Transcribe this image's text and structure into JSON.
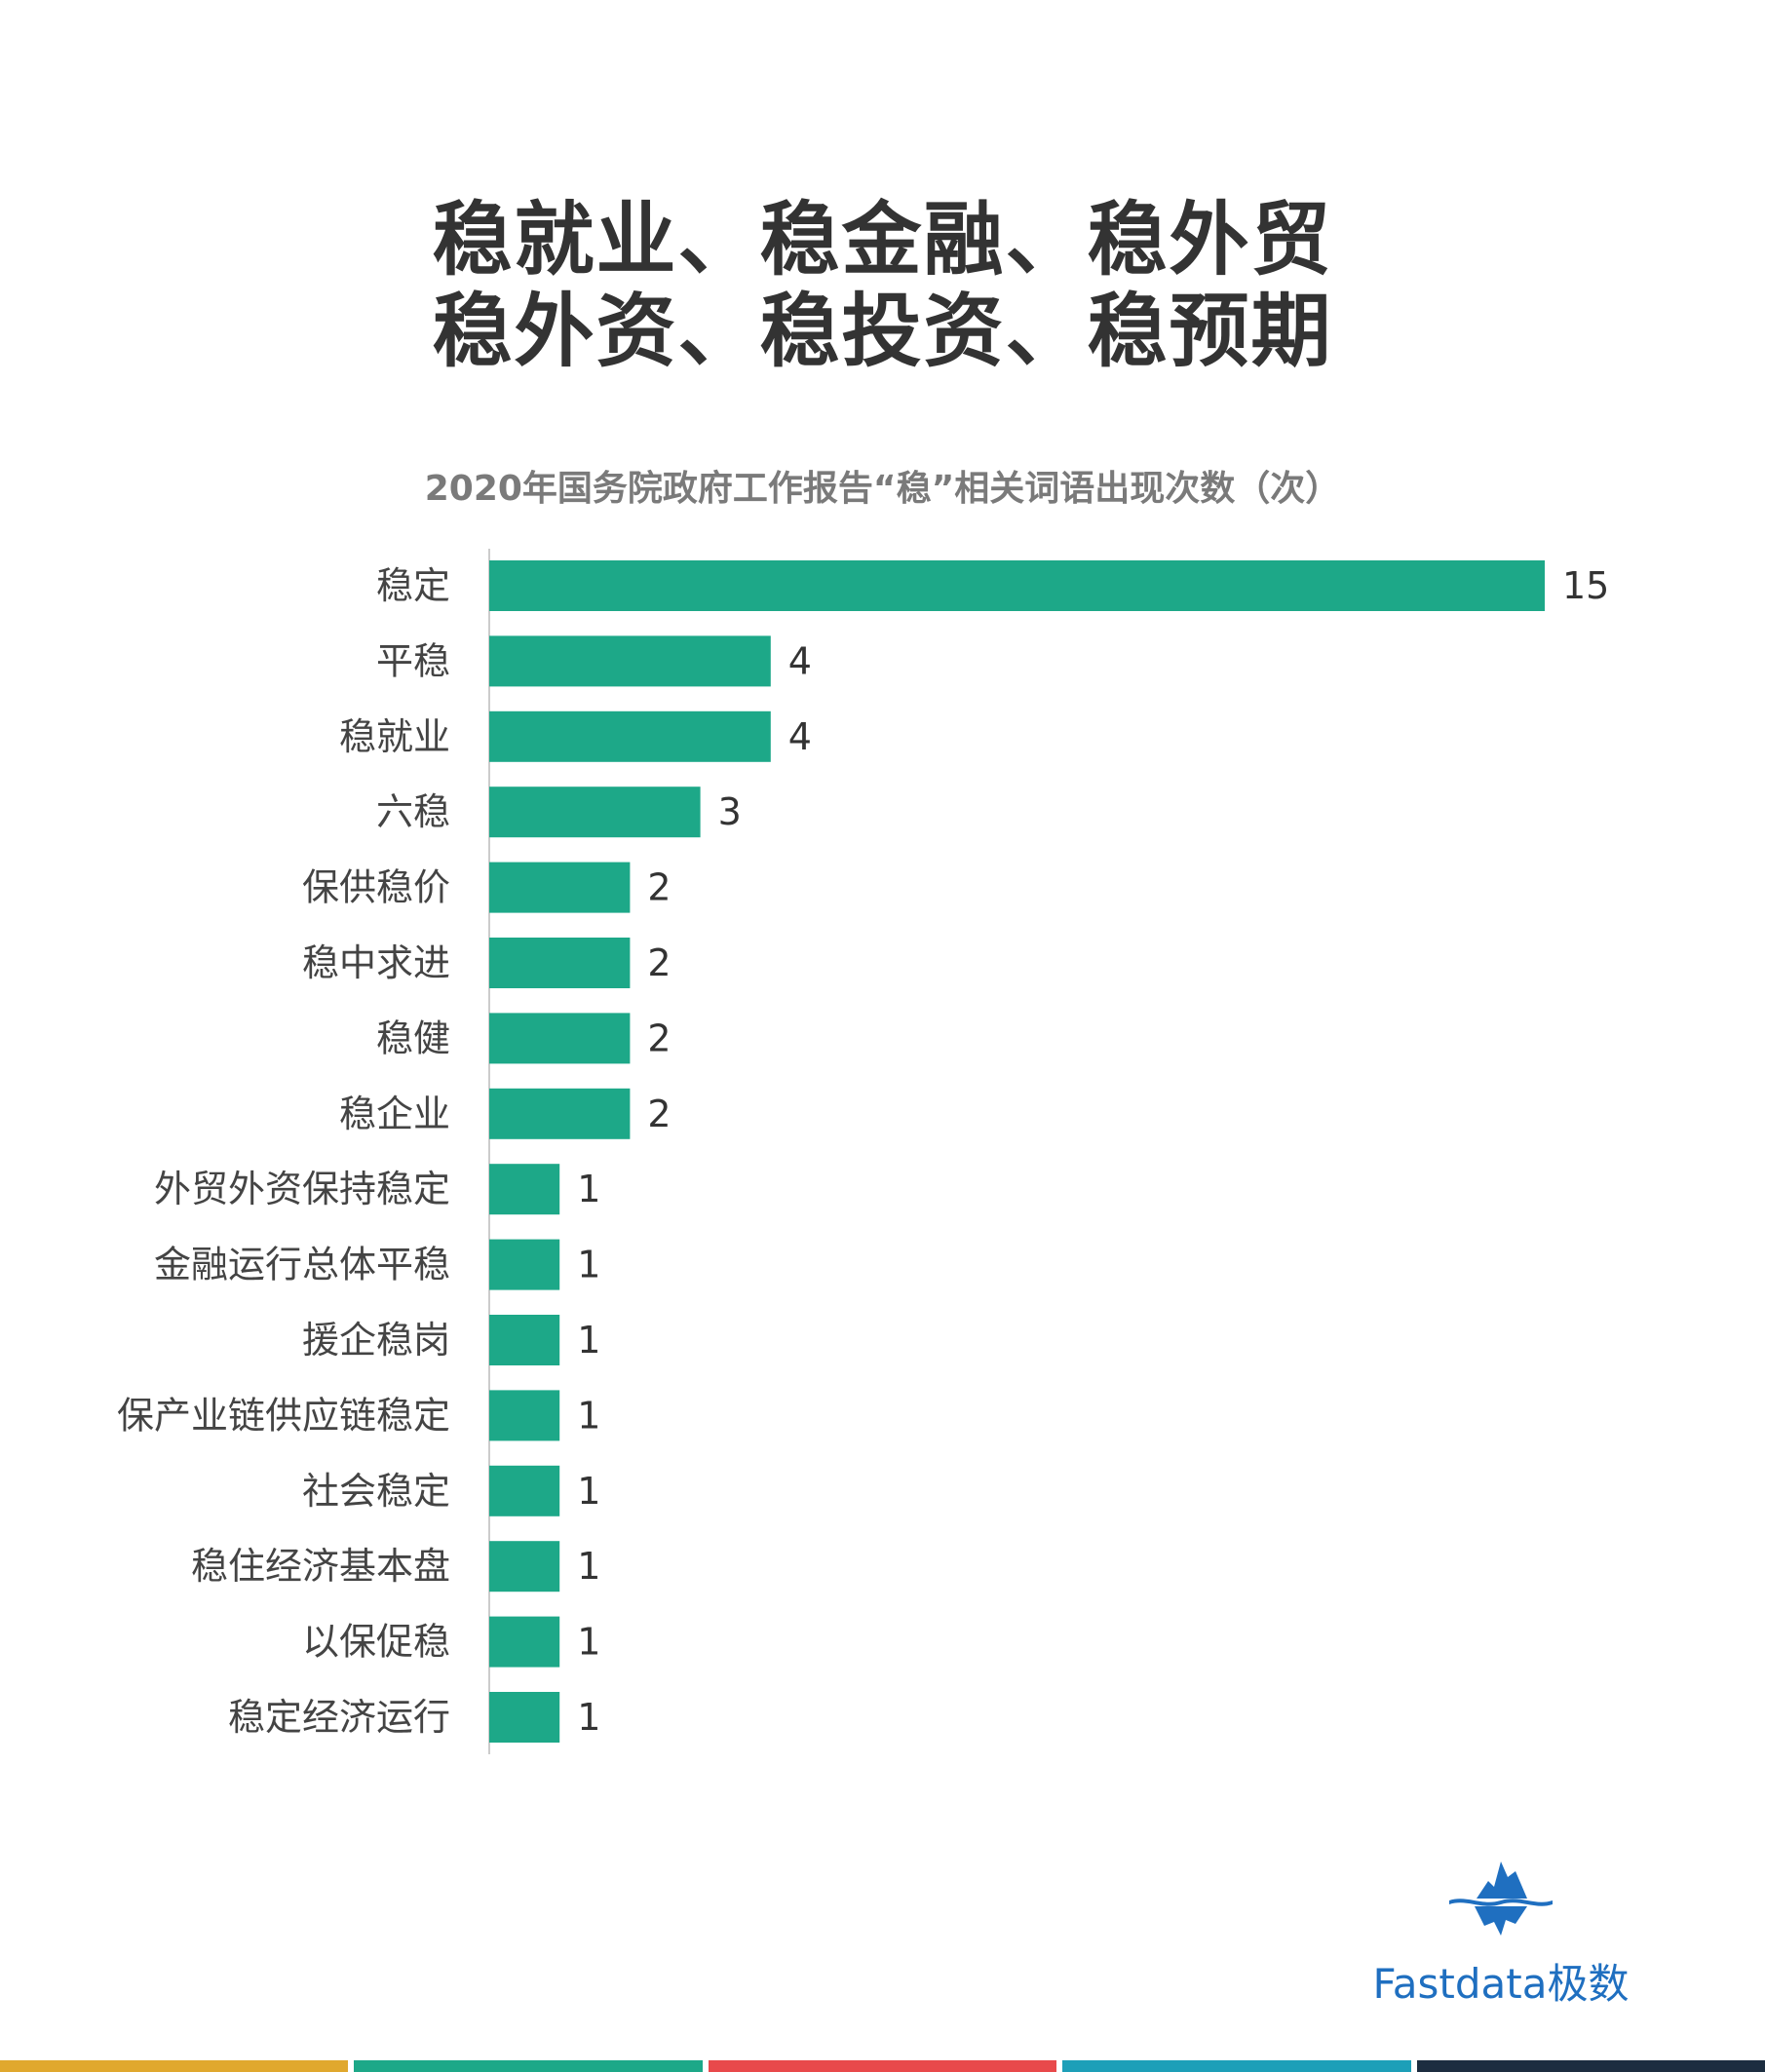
{
  "headline": {
    "line1": "稳就业、稳金融、稳外贸",
    "line2": "稳外资、稳投资、稳预期"
  },
  "chart_data": {
    "type": "bar",
    "orientation": "horizontal",
    "title": "2020年国务院政府工作报告“稳”相关词语出现次数（次）",
    "categories": [
      "稳定",
      "平稳",
      "稳就业",
      "六稳",
      "保供稳价",
      "稳中求进",
      "稳健",
      "稳企业",
      "外贸外资保持稳定",
      "金融运行总体平稳",
      "援企稳岗",
      "保产业链供应链稳定",
      "社会稳定",
      "稳住经济基本盘",
      "以保促稳",
      "稳定经济运行"
    ],
    "values": [
      15,
      4,
      4,
      3,
      2,
      2,
      2,
      2,
      1,
      1,
      1,
      1,
      1,
      1,
      1,
      1
    ],
    "xlim": [
      0,
      15
    ],
    "grid": false,
    "legend": "none",
    "bar_color": "#1da888"
  },
  "logo": {
    "text": "Fastdata极数",
    "color": "#1f6fc0",
    "icon": "iceberg-logo-icon"
  },
  "footer": {
    "stripe_colors": [
      "#e0a82e",
      "#1da888",
      "#e8494b",
      "#1d9fb8",
      "#1c2d40"
    ]
  }
}
